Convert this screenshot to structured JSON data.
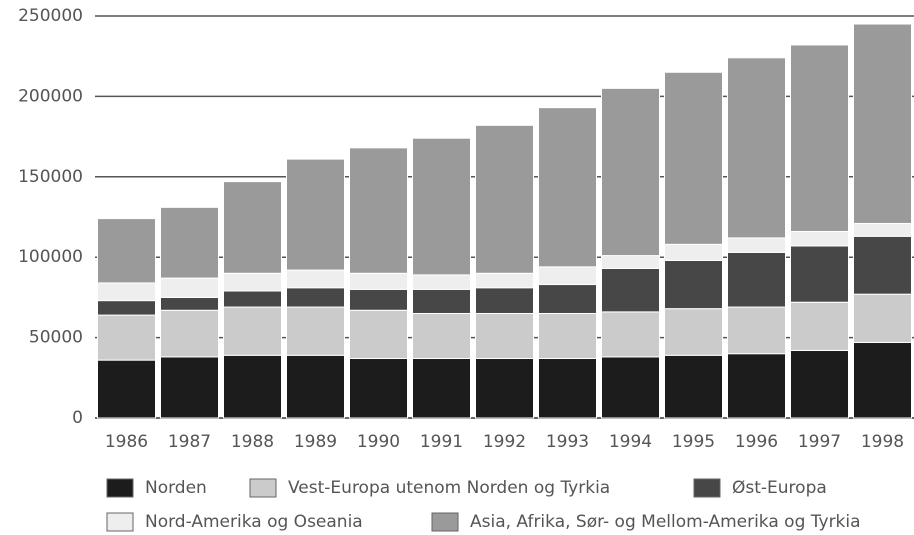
{
  "chart_data": {
    "type": "stacked-bar",
    "categories": [
      "1986",
      "1987",
      "1988",
      "1989",
      "1990",
      "1991",
      "1992",
      "1993",
      "1994",
      "1995",
      "1996",
      "1997",
      "1998"
    ],
    "series": [
      {
        "name": "Norden",
        "color": "#1c1c1c",
        "values": [
          36000,
          38000,
          39000,
          39000,
          37000,
          37000,
          37000,
          37000,
          38000,
          39000,
          40000,
          42000,
          47000
        ]
      },
      {
        "name": "Vest-Europa utenom Norden og Tyrkia",
        "color": "#cbcbcb",
        "values": [
          28000,
          29000,
          30000,
          30000,
          30000,
          28000,
          28000,
          28000,
          28000,
          29000,
          29000,
          30000,
          30000
        ]
      },
      {
        "name": "Øst-Europa",
        "color": "#474747",
        "values": [
          9000,
          8000,
          10000,
          12000,
          13000,
          15000,
          16000,
          18000,
          27000,
          30000,
          34000,
          35000,
          36000
        ]
      },
      {
        "name": "Nord-Amerika og Oseania",
        "color": "#eeeeee",
        "values": [
          11000,
          12000,
          11000,
          11000,
          10000,
          9000,
          9000,
          11000,
          8000,
          10000,
          9000,
          9000,
          8000
        ]
      },
      {
        "name": "Asia, Afrika, Sør- og Mellom-Amerika og Tyrkia",
        "color": "#9a9a9a",
        "values": [
          40000,
          44000,
          57000,
          69000,
          78000,
          85000,
          92000,
          99000,
          104000,
          107000,
          112000,
          116000,
          124000
        ]
      }
    ],
    "ylim": [
      0,
      250000
    ],
    "yticks": [
      0,
      50000,
      100000,
      150000,
      200000,
      250000
    ],
    "grid": true
  }
}
